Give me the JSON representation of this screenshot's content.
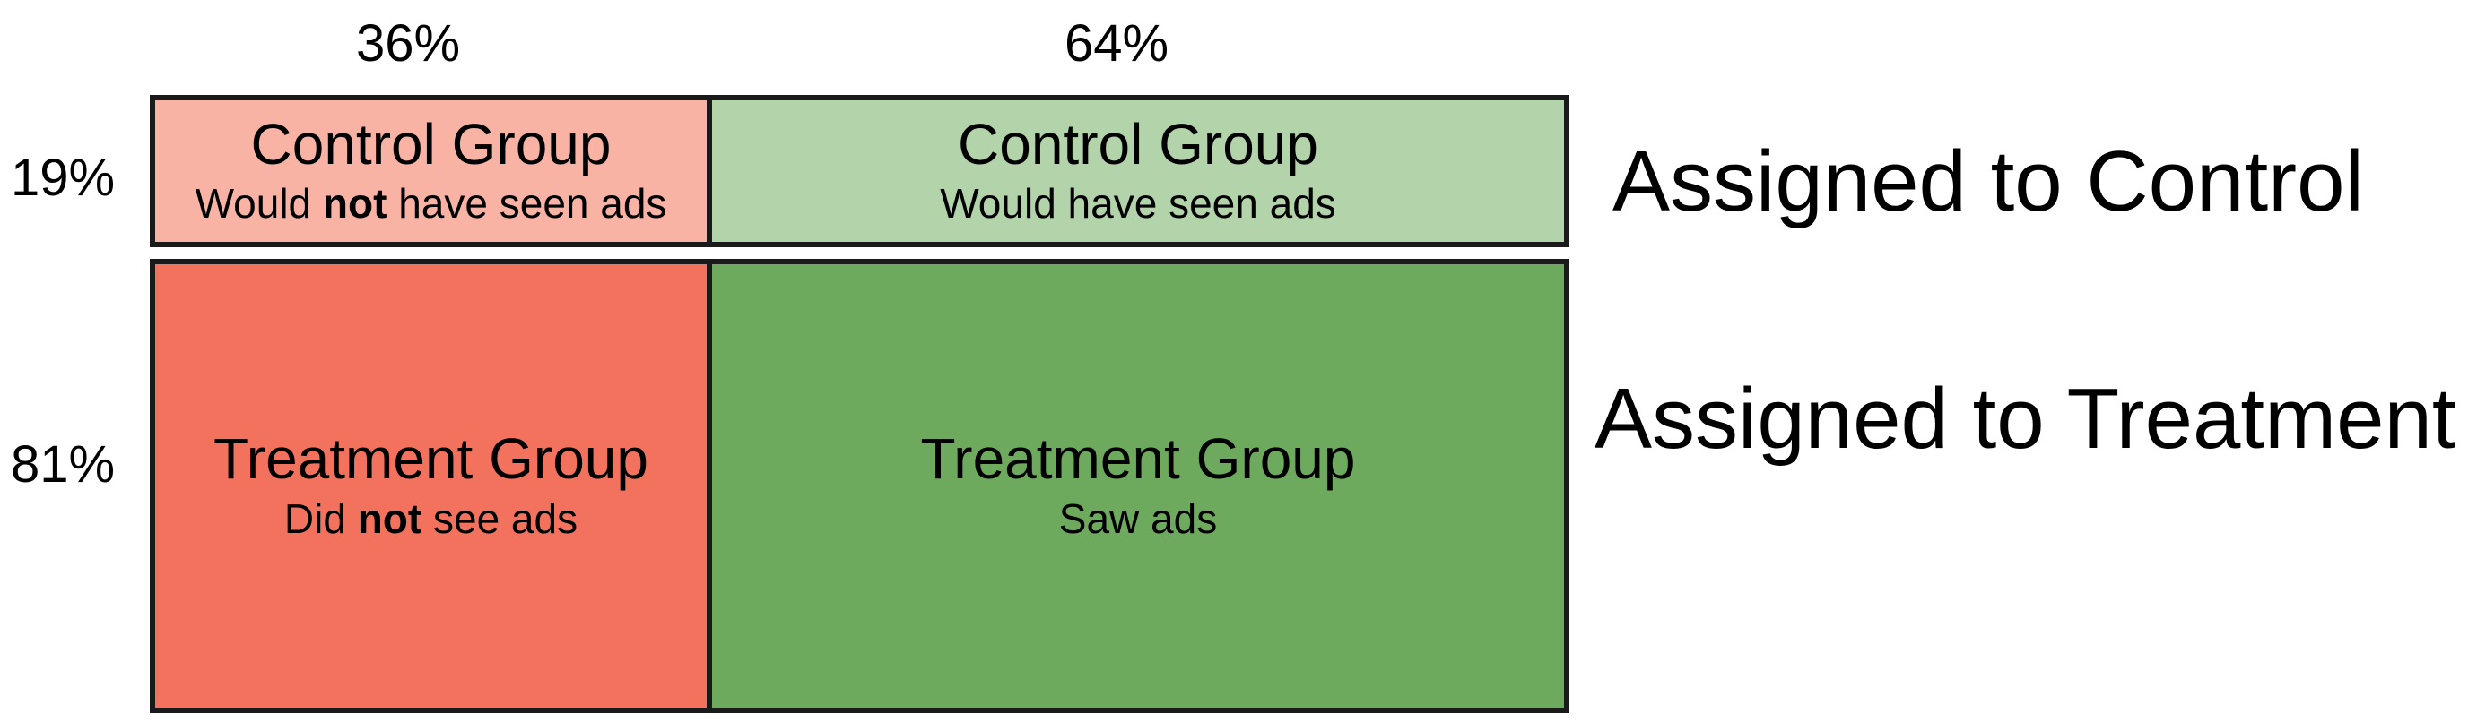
{
  "column_percentages": [
    "36%",
    "64%"
  ],
  "row_percentages": [
    "19%",
    "81%"
  ],
  "row_labels": [
    "Assigned to Control",
    "Assigned to Treatment"
  ],
  "cells": {
    "control_noads": {
      "title": "Control Group",
      "sub_before": "Would ",
      "sub_bold": "not",
      "sub_after": " have seen ads",
      "color": "#f8b3a5"
    },
    "control_ads": {
      "title": "Control Group",
      "sub": "Would have seen ads",
      "color": "#b3d3aa"
    },
    "treatment_noads": {
      "title": "Treatment Group",
      "sub_before": "Did ",
      "sub_bold": "not",
      "sub_after": " see ads",
      "color": "#f3725d"
    },
    "treatment_ads": {
      "title": "Treatment Group",
      "sub": "Saw ads",
      "color": "#6eaa5e"
    }
  }
}
